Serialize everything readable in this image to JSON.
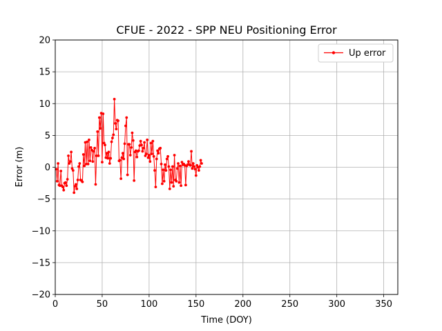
{
  "chart_data": {
    "type": "line",
    "title": "CFUE - 2022 - SPP NEU Positioning Error",
    "xlabel": "Time (DOY)",
    "ylabel": "Error (m)",
    "xlim": [
      0,
      365
    ],
    "ylim": [
      -20,
      20
    ],
    "xticks": [
      0,
      50,
      100,
      150,
      200,
      250,
      300,
      350
    ],
    "yticks": [
      -20,
      -15,
      -10,
      -5,
      0,
      5,
      10,
      15,
      20
    ],
    "xtick_labels": [
      "0",
      "50",
      "100",
      "150",
      "200",
      "250",
      "300",
      "350"
    ],
    "ytick_labels": [
      "−20",
      "−15",
      "−10",
      "−5",
      "0",
      "5",
      "10",
      "15",
      "20"
    ],
    "grid": true,
    "legend_position": "top-right",
    "series": [
      {
        "name": "Up error",
        "color": "#ff0000",
        "marker": "circle",
        "x": [
          1,
          2,
          3,
          4,
          5,
          6,
          7,
          8,
          9,
          10,
          11,
          12,
          13,
          14,
          15,
          16,
          17,
          18,
          19,
          20,
          21,
          22,
          23,
          24,
          25,
          26,
          27,
          28,
          29,
          30,
          31,
          32,
          33,
          34,
          35,
          36,
          37,
          38,
          39,
          40,
          41,
          42,
          43,
          44,
          45,
          46,
          47,
          48,
          49,
          50,
          51,
          52,
          53,
          54,
          55,
          56,
          57,
          58,
          59,
          60,
          61,
          62,
          63,
          64,
          65,
          66,
          67,
          68,
          69,
          70,
          71,
          72,
          73,
          74,
          75,
          76,
          77,
          78,
          79,
          80,
          81,
          82,
          83,
          84,
          85,
          86,
          87,
          88,
          89,
          90,
          91,
          92,
          93,
          94,
          95,
          96,
          97,
          98,
          99,
          100,
          101,
          102,
          103,
          104,
          105,
          106,
          107,
          108,
          109,
          110,
          111,
          112,
          113,
          114,
          115,
          116,
          117,
          118,
          119,
          120,
          121,
          122,
          123,
          124,
          125,
          126,
          127,
          128,
          129,
          130,
          131,
          132,
          133,
          134,
          135,
          136,
          137,
          138,
          139,
          140,
          141,
          142,
          143,
          144,
          145,
          146,
          147,
          148,
          149,
          150,
          151,
          152,
          153,
          154,
          155,
          156
        ],
        "y": [
          -0.3,
          -2.2,
          0.6,
          -2.8,
          -2.9,
          -0.6,
          -2.9,
          -3.1,
          -3.6,
          -2.5,
          -2.4,
          -2.9,
          -1.9,
          1.8,
          0.6,
          0.9,
          2.4,
          -0.2,
          -0.5,
          -4.0,
          -3.0,
          -2.7,
          -3.4,
          -2.0,
          0.1,
          0.6,
          -2.0,
          -2.1,
          -2.3,
          2.0,
          0.2,
          3.9,
          0.5,
          4.0,
          0.5,
          4.3,
          1.0,
          3.1,
          2.7,
          0.9,
          2.5,
          3.0,
          -2.7,
          1.8,
          5.6,
          1.8,
          7.8,
          6.1,
          8.5,
          0.8,
          8.4,
          3.8,
          3.5,
          1.5,
          2.2,
          1.4,
          2.4,
          0.6,
          1.4,
          4.0,
          4.6,
          5.1,
          10.7,
          6.9,
          6.0,
          7.4,
          7.3,
          1.0,
          1.1,
          -1.8,
          1.5,
          2.2,
          1.3,
          3.7,
          6.5,
          7.8,
          -1.2,
          3.6,
          3.6,
          1.9,
          3.1,
          5.4,
          4.2,
          -2.1,
          2.4,
          2.6,
          1.6,
          2.5,
          2.6,
          3.4,
          4.1,
          3.5,
          2.5,
          3.0,
          3.9,
          1.8,
          2.1,
          4.3,
          1.5,
          1.9,
          0.9,
          3.8,
          2.1,
          4.1,
          1.7,
          -0.5,
          -3.1,
          1.3,
          2.6,
          2.2,
          2.9,
          3.0,
          0.5,
          -2.6,
          -0.4,
          -2.2,
          0.4,
          -0.5,
          1.3,
          1.7,
          0.1,
          -3.4,
          -0.4,
          -2.4,
          0.1,
          -3.0,
          1.9,
          -2.0,
          -2.2,
          -0.2,
          0.6,
          -2.4,
          0.2,
          -2.9,
          0.8,
          0.4,
          0.5,
          0.3,
          -2.8,
          0.2,
          0.4,
          0.9,
          0.4,
          0.3,
          2.5,
          -0.2,
          0.6,
          0.1,
          -0.3,
          -1.3,
          0.3,
          0.0,
          -0.5,
          0.1,
          1.1,
          0.6
        ]
      }
    ]
  }
}
